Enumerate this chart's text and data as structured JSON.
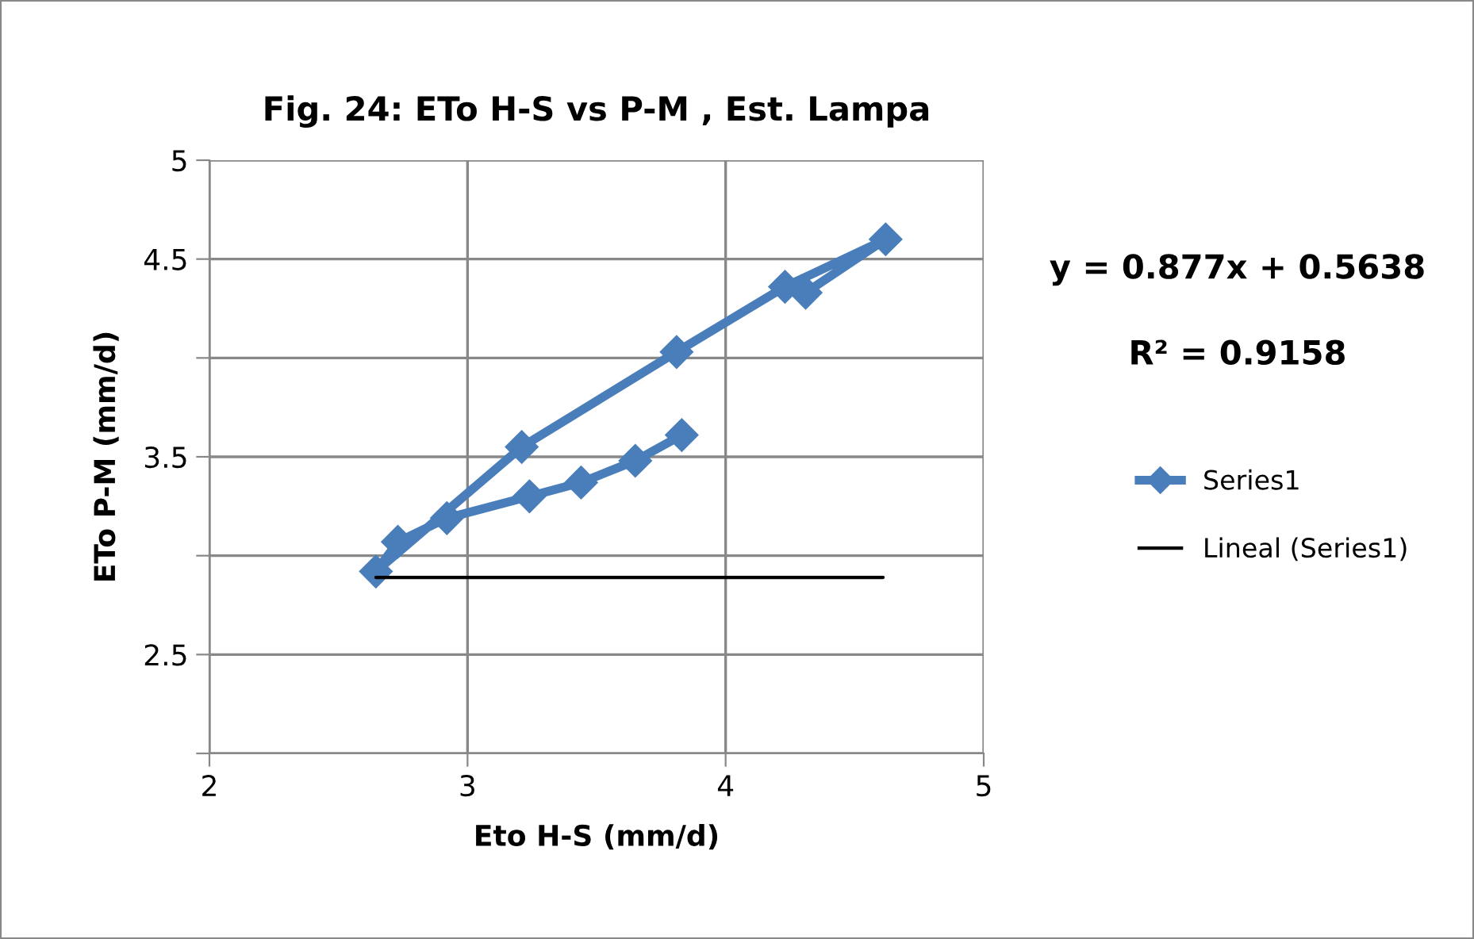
{
  "chart_data": {
    "type": "line",
    "title": "Fig. 24: ETo H-S vs P-M , Est. Lampa",
    "xlabel": "Eto H-S (mm/d)",
    "ylabel": "ETo P-M (mm/d)",
    "annotations": [
      "y = 0.877x + 0.5638",
      "R² = 0.9158"
    ],
    "series": [
      {
        "name": "Series1",
        "color": "#4a7ebb",
        "marker": "diamond",
        "line_style": "solid",
        "x": [
          3.83,
          3.65,
          3.44,
          3.24,
          2.92,
          2.73,
          2.645,
          3.21,
          3.81,
          4.23,
          4.62,
          4.31
        ],
        "values": [
          3.61,
          3.48,
          3.37,
          3.3,
          3.19,
          3.07,
          2.92,
          3.55,
          4.03,
          4.36,
          4.6,
          4.33
        ]
      },
      {
        "name": "Lineal (Series1)",
        "color": "#000000",
        "marker": "none",
        "line_style": "solid",
        "x": [
          2.645,
          4.61
        ],
        "values": [
          2.89,
          2.89
        ]
      }
    ],
    "xlim": [
      2,
      5
    ],
    "xticks": [
      2,
      3,
      4,
      5
    ],
    "ylim": [
      2,
      5
    ],
    "yticks": [
      {
        "value": 2,
        "label": null
      },
      {
        "value": 2.5,
        "label": "2.5"
      },
      {
        "value": 3,
        "label": null
      },
      {
        "value": 3.5,
        "label": "3.5"
      },
      {
        "value": 4,
        "label": null
      },
      {
        "value": 4.5,
        "label": "4.5"
      },
      {
        "value": 5,
        "label": "5"
      }
    ],
    "grid": true,
    "legend": "right"
  }
}
